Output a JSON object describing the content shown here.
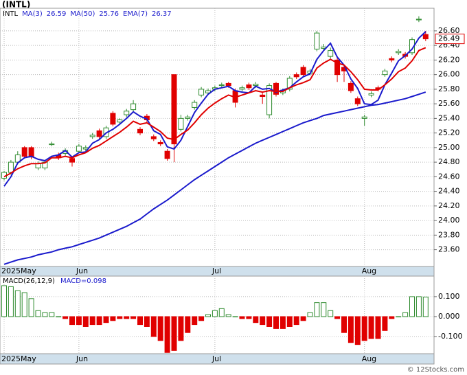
{
  "title": "(INTL)",
  "footer": "© 12Stocks.com",
  "chart_data": [
    {
      "type": "candlestick",
      "symbol": "INTL",
      "open": [
        24.58,
        24.66,
        24.8,
        25.0,
        25.0,
        24.72,
        24.72,
        25.04,
        24.9,
        24.92,
        24.85,
        24.95,
        24.98,
        25.15,
        25.23,
        25.15,
        25.47,
        25.35,
        25.45,
        25.52,
        25.25,
        25.43,
        25.15,
        25.07,
        24.95,
        26.0,
        25.25,
        25.4,
        25.55,
        25.72,
        25.75,
        25.8,
        25.85,
        25.88,
        25.78,
        25.8,
        25.86,
        25.85,
        25.72,
        25.45,
        25.88,
        25.75,
        25.8,
        26.0,
        26.1,
        26.02,
        26.35,
        26.36,
        26.25,
        26.2,
        26.1,
        25.88,
        25.67,
        25.4,
        25.72,
        25.82,
        26.0,
        26.22,
        26.3,
        26.28,
        26.3,
        26.75,
        26.55
      ],
      "high": [
        24.68,
        24.83,
        24.95,
        25.02,
        25.02,
        24.81,
        24.83,
        25.08,
        24.93,
        24.99,
        24.87,
        25.05,
        25.03,
        25.2,
        25.26,
        25.3,
        25.5,
        25.4,
        25.53,
        25.65,
        25.28,
        25.46,
        25.18,
        25.1,
        24.98,
        26.0,
        25.45,
        25.45,
        25.65,
        25.83,
        25.81,
        25.85,
        25.89,
        25.9,
        25.81,
        25.85,
        25.89,
        25.9,
        25.75,
        25.88,
        25.9,
        25.81,
        25.98,
        26.03,
        26.13,
        26.08,
        26.6,
        26.42,
        26.37,
        26.23,
        26.13,
        25.91,
        25.7,
        25.45,
        25.77,
        25.85,
        26.08,
        26.25,
        26.35,
        26.31,
        26.51,
        26.8,
        26.6
      ],
      "low": [
        24.55,
        24.63,
        24.77,
        24.85,
        24.84,
        24.69,
        24.69,
        25.02,
        24.83,
        24.89,
        24.74,
        24.92,
        24.95,
        25.12,
        25.12,
        25.12,
        25.29,
        25.32,
        25.42,
        25.49,
        25.17,
        25.35,
        25.09,
        25.02,
        24.82,
        24.8,
        25.22,
        25.37,
        25.52,
        25.69,
        25.72,
        25.77,
        25.82,
        25.82,
        25.55,
        25.77,
        25.79,
        25.82,
        25.6,
        25.4,
        25.7,
        25.72,
        25.77,
        25.94,
        25.97,
        25.99,
        26.32,
        26.33,
        26.22,
        25.9,
        25.9,
        25.75,
        25.57,
        25.3,
        25.69,
        25.77,
        25.97,
        26.17,
        26.27,
        26.22,
        26.27,
        26.72,
        26.46
      ],
      "close": [
        24.66,
        24.8,
        24.9,
        24.88,
        24.87,
        24.78,
        24.8,
        25.05,
        24.86,
        24.96,
        24.8,
        25.02,
        25.0,
        25.17,
        25.15,
        25.27,
        25.32,
        25.38,
        25.5,
        25.6,
        25.2,
        25.38,
        25.12,
        25.05,
        24.85,
        25.05,
        25.4,
        25.42,
        25.62,
        25.8,
        25.78,
        25.82,
        25.86,
        25.85,
        25.62,
        25.82,
        25.82,
        25.87,
        25.7,
        25.85,
        25.73,
        25.78,
        25.95,
        25.97,
        26.0,
        26.05,
        26.57,
        26.38,
        26.33,
        26.0,
        26.05,
        25.78,
        25.6,
        25.42,
        25.74,
        25.8,
        26.05,
        26.2,
        26.32,
        26.25,
        26.48,
        26.76,
        26.49
      ],
      "up_color": "#2e8b2e",
      "down_color": "#e00000",
      "series": [
        {
          "name": "MA(3)",
          "color": "#1a1acc",
          "values": [
            24.47,
            24.6,
            24.79,
            24.86,
            24.88,
            24.84,
            24.82,
            24.88,
            24.9,
            24.96,
            24.87,
            24.93,
            24.94,
            25.06,
            25.11,
            25.2,
            25.25,
            25.32,
            25.4,
            25.49,
            25.43,
            25.39,
            25.23,
            25.18,
            25.01,
            24.98,
            25.1,
            25.29,
            25.48,
            25.61,
            25.73,
            25.8,
            25.82,
            25.84,
            25.78,
            25.76,
            25.75,
            25.84,
            25.8,
            25.81,
            25.76,
            25.79,
            25.82,
            25.9,
            25.97,
            26.01,
            26.21,
            26.33,
            26.43,
            26.24,
            26.13,
            25.94,
            25.81,
            25.6,
            25.59,
            25.65,
            25.86,
            26.02,
            26.19,
            26.26,
            26.35,
            26.5,
            26.59
          ]
        },
        {
          "name": "MA(50)",
          "color": "#1a1acc",
          "values": [
            23.4,
            23.43,
            23.46,
            23.48,
            23.5,
            23.53,
            23.55,
            23.57,
            23.6,
            23.62,
            23.64,
            23.67,
            23.7,
            23.73,
            23.76,
            23.8,
            23.84,
            23.88,
            23.92,
            23.97,
            24.02,
            24.09,
            24.16,
            24.22,
            24.28,
            24.35,
            24.42,
            24.49,
            24.56,
            24.62,
            24.68,
            24.74,
            24.8,
            24.86,
            24.91,
            24.96,
            25.01,
            25.06,
            25.1,
            25.14,
            25.18,
            25.22,
            25.26,
            25.3,
            25.34,
            25.37,
            25.4,
            25.44,
            25.46,
            25.48,
            25.5,
            25.52,
            25.54,
            25.56,
            25.58,
            25.59,
            25.61,
            25.63,
            25.65,
            25.67,
            25.7,
            25.73,
            25.76
          ]
        },
        {
          "name": "EMA(7)",
          "color": "#e00000",
          "values": [
            24.6,
            24.65,
            24.71,
            24.75,
            24.78,
            24.78,
            24.79,
            24.86,
            24.86,
            24.88,
            24.86,
            24.9,
            24.93,
            24.99,
            25.03,
            25.09,
            25.15,
            25.21,
            25.28,
            25.36,
            25.32,
            25.34,
            25.28,
            25.22,
            25.13,
            25.11,
            25.18,
            25.24,
            25.34,
            25.45,
            25.54,
            25.61,
            25.67,
            25.72,
            25.69,
            25.72,
            25.75,
            25.78,
            25.76,
            25.78,
            25.77,
            25.77,
            25.82,
            25.86,
            25.89,
            25.93,
            26.09,
            26.16,
            26.21,
            26.16,
            26.13,
            26.04,
            25.93,
            25.8,
            25.79,
            25.79,
            25.86,
            25.94,
            26.04,
            26.09,
            26.19,
            26.33,
            26.37
          ]
        }
      ],
      "ylim": [
        23.37,
        26.91
      ],
      "yticks": [
        {
          "value": 23.6,
          "label": "23.60"
        },
        {
          "value": 23.8,
          "label": "23.80"
        },
        {
          "value": 24.0,
          "label": "24.00"
        },
        {
          "value": 24.2,
          "label": "24.20"
        },
        {
          "value": 24.4,
          "label": "24.40"
        },
        {
          "value": 24.6,
          "label": "24.60"
        },
        {
          "value": 24.8,
          "label": "24.80"
        },
        {
          "value": 25.0,
          "label": "25.00"
        },
        {
          "value": 25.2,
          "label": "25.20"
        },
        {
          "value": 25.4,
          "label": "25.40"
        },
        {
          "value": 25.6,
          "label": "25.60"
        },
        {
          "value": 25.8,
          "label": "25.80"
        },
        {
          "value": 26.0,
          "label": "26.00"
        },
        {
          "value": 26.2,
          "label": "26.20"
        },
        {
          "value": 26.4,
          "label": "26.40"
        },
        {
          "value": 26.6,
          "label": "26.60"
        }
      ],
      "date_labels": [
        {
          "index": 0,
          "label": "2025May"
        },
        {
          "index": 11,
          "label": "Jun"
        },
        {
          "index": 31,
          "label": "Jul"
        },
        {
          "index": 53,
          "label": "Aug"
        }
      ],
      "grid": true
    },
    {
      "type": "bar",
      "name": "MACD(26,12,9)",
      "value_label": "MACD=0.098",
      "values": [
        0.155,
        0.15,
        0.13,
        0.12,
        0.09,
        0.03,
        0.02,
        0.02,
        0.0,
        -0.01,
        -0.04,
        -0.04,
        -0.05,
        -0.04,
        -0.04,
        -0.03,
        -0.02,
        -0.01,
        -0.01,
        -0.01,
        -0.04,
        -0.05,
        -0.1,
        -0.12,
        -0.18,
        -0.17,
        -0.12,
        -0.08,
        -0.04,
        -0.02,
        0.01,
        0.03,
        0.04,
        0.01,
        0.0,
        -0.01,
        -0.01,
        -0.03,
        -0.04,
        -0.05,
        -0.06,
        -0.06,
        -0.05,
        -0.04,
        -0.02,
        0.02,
        0.07,
        0.07,
        0.03,
        -0.01,
        -0.08,
        -0.13,
        -0.14,
        -0.12,
        -0.11,
        -0.11,
        -0.07,
        -0.01,
        0.0,
        0.02,
        0.1,
        0.1,
        0.098
      ],
      "up_color": "#2e8b2e",
      "down_color": "#e00000",
      "ylim": [
        -0.186,
        0.203
      ],
      "yticks": [
        {
          "value": -0.1,
          "label": "-0.100"
        },
        {
          "value": 0,
          "label": "0.000"
        },
        {
          "value": 0.1,
          "label": "0.100"
        }
      ],
      "date_labels": [
        {
          "index": 0,
          "label": "2025May"
        },
        {
          "index": 11,
          "label": "Jun"
        },
        {
          "index": 31,
          "label": "Jul"
        },
        {
          "index": 53,
          "label": "Aug"
        }
      ],
      "grid": true
    }
  ]
}
